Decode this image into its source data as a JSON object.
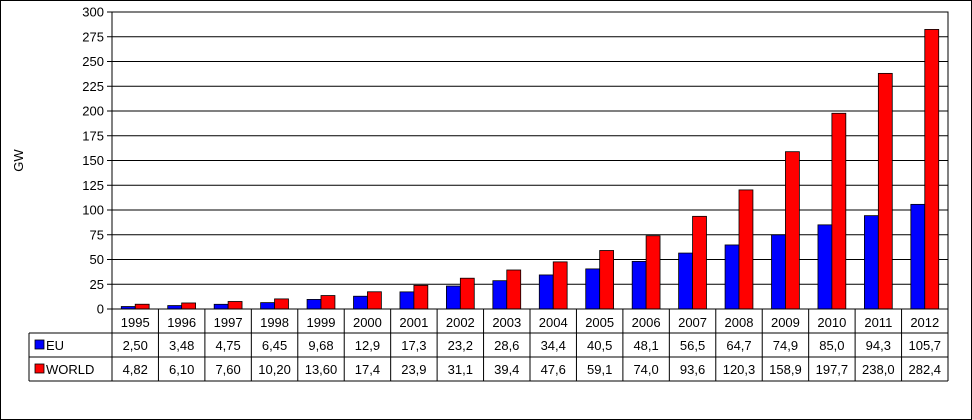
{
  "chart_data": {
    "type": "bar",
    "title": "",
    "xlabel": "",
    "ylabel": "GW",
    "ylim": [
      0,
      300
    ],
    "y_ticks": [
      "0",
      "25",
      "50",
      "75",
      "100",
      "125",
      "150",
      "175",
      "200",
      "225",
      "250",
      "275",
      "300"
    ],
    "grid": true,
    "legend": "data-table",
    "categories": [
      "1995",
      "1996",
      "1997",
      "1998",
      "1999",
      "2000",
      "2001",
      "2002",
      "2003",
      "2004",
      "2005",
      "2006",
      "2007",
      "2008",
      "2009",
      "2010",
      "2011",
      "2012"
    ],
    "series": [
      {
        "name": "EU",
        "color": "#0000ff",
        "values": [
          2.5,
          3.48,
          4.75,
          6.45,
          9.68,
          12.9,
          17.3,
          23.2,
          28.6,
          34.4,
          40.5,
          48.1,
          56.5,
          64.7,
          74.9,
          85.0,
          94.3,
          105.7
        ],
        "labels": [
          "2,50",
          "3,48",
          "4,75",
          "6,45",
          "9,68",
          "12,9",
          "17,3",
          "23,2",
          "28,6",
          "34,4",
          "40,5",
          "48,1",
          "56,5",
          "64,7",
          "74,9",
          "85,0",
          "94,3",
          "105,7"
        ]
      },
      {
        "name": "WORLD",
        "color": "#ff0000",
        "values": [
          4.82,
          6.1,
          7.6,
          10.2,
          13.6,
          17.4,
          23.9,
          31.1,
          39.4,
          47.6,
          59.1,
          74.0,
          93.6,
          120.3,
          158.9,
          197.7,
          238.0,
          282.4
        ],
        "labels": [
          "4,82",
          "6,10",
          "7,60",
          "10,20",
          "13,60",
          "17,4",
          "23,9",
          "31,1",
          "39,4",
          "47,6",
          "59,1",
          "74,0",
          "93,6",
          "120,3",
          "158,9",
          "197,7",
          "238,0",
          "282,4"
        ]
      }
    ]
  }
}
